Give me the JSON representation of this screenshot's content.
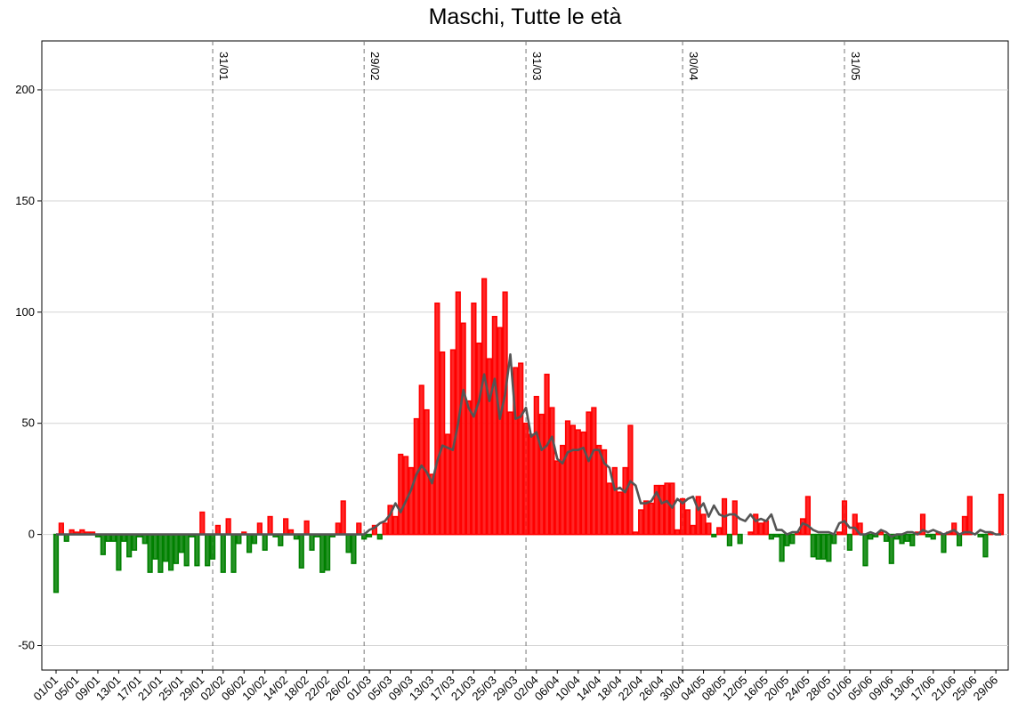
{
  "chart_data": {
    "type": "bar",
    "title": "Maschi, Tutte le età",
    "categories": [
      "01/01",
      null,
      null,
      null,
      "05/01",
      null,
      null,
      null,
      "09/01",
      null,
      null,
      null,
      "13/01",
      null,
      null,
      null,
      "17/01",
      null,
      null,
      null,
      "21/01",
      null,
      null,
      null,
      "25/01",
      null,
      null,
      null,
      "29/01",
      null,
      null,
      null,
      "02/02",
      null,
      null,
      null,
      "06/02",
      null,
      null,
      null,
      "10/02",
      null,
      null,
      null,
      "14/02",
      null,
      null,
      null,
      "18/02",
      null,
      null,
      null,
      "22/02",
      null,
      null,
      null,
      "26/02",
      null,
      null,
      null,
      "01/03",
      null,
      null,
      null,
      "05/03",
      null,
      null,
      null,
      "09/03",
      null,
      null,
      null,
      "13/03",
      null,
      null,
      null,
      "17/03",
      null,
      null,
      null,
      "21/03",
      null,
      null,
      null,
      "25/03",
      null,
      null,
      null,
      "29/03",
      null,
      null,
      null,
      "02/04",
      null,
      null,
      null,
      "06/04",
      null,
      null,
      null,
      "10/04",
      null,
      null,
      null,
      "14/04",
      null,
      null,
      null,
      "18/04",
      null,
      null,
      null,
      "22/04",
      null,
      null,
      null,
      "26/04",
      null,
      null,
      null,
      "30/04",
      null,
      null,
      null,
      "04/05",
      null,
      null,
      null,
      "08/05",
      null,
      null,
      null,
      "12/05",
      null,
      null,
      null,
      "16/05",
      null,
      null,
      null,
      "20/05",
      null,
      null,
      null,
      "24/05",
      null,
      null,
      null,
      "28/05",
      null,
      null,
      null,
      "01/06",
      null,
      null,
      null,
      "05/06",
      null,
      null,
      null,
      "09/06",
      null,
      null,
      null,
      "13/06",
      null,
      null,
      null,
      "17/06",
      null,
      null,
      null,
      "21/06",
      null,
      null,
      null,
      "25/06",
      null,
      null,
      null,
      "29/06",
      null
    ],
    "values": [
      -26,
      5,
      -3,
      2,
      1,
      2,
      1,
      1,
      -1,
      -9,
      -3,
      -3,
      -16,
      -3,
      -10,
      -7,
      -1,
      -4,
      -17,
      -11,
      -17,
      -12,
      -16,
      -13,
      -8,
      -14,
      -1,
      -14,
      10,
      -14,
      -11,
      4,
      -17,
      7,
      -17,
      -4,
      1,
      -8,
      -4,
      5,
      -7,
      8,
      -1,
      -5,
      7,
      2,
      -2,
      -15,
      6,
      -7,
      -1,
      -17,
      -16,
      -1,
      5,
      15,
      -8,
      -13,
      5,
      -2,
      -1,
      4,
      -2,
      5,
      13,
      8,
      36,
      35,
      30,
      52,
      67,
      56,
      27,
      104,
      82,
      45,
      83,
      109,
      95,
      60,
      104,
      86,
      115,
      79,
      98,
      93,
      109,
      55,
      75,
      77,
      50,
      45,
      62,
      54,
      72,
      57,
      33,
      40,
      51,
      49,
      47,
      46,
      55,
      57,
      40,
      38,
      23,
      30,
      19,
      30,
      49,
      1,
      11,
      15,
      14,
      22,
      22,
      23,
      23,
      2,
      16,
      11,
      4,
      17,
      9,
      5,
      -1,
      3,
      16,
      -5,
      15,
      -4,
      0,
      1,
      9,
      5,
      6,
      -2,
      -1,
      -12,
      -5,
      -4,
      1,
      7,
      17,
      -10,
      -11,
      -11,
      -12,
      -4,
      1,
      15,
      -7,
      9,
      5,
      -14,
      -2,
      -1,
      1,
      -3,
      -13,
      -2,
      -4,
      -3,
      -5,
      1,
      9,
      -1,
      -2,
      1,
      -8,
      1,
      5,
      -5,
      8,
      17,
      0,
      -1,
      -10,
      1,
      0,
      18
    ],
    "positive_color": "#ff0000",
    "negative_color": "#008000",
    "line": {
      "color": "#555555",
      "values": [
        0,
        0,
        0,
        0,
        0,
        0,
        0,
        0,
        0,
        0,
        0,
        0,
        0,
        0,
        0,
        0,
        0,
        0,
        0,
        0,
        0,
        0,
        0,
        0,
        0,
        0,
        0,
        0,
        0,
        0,
        0,
        0,
        0,
        0,
        0,
        0,
        0,
        0,
        0,
        0,
        0,
        0,
        0,
        0,
        0,
        0,
        0,
        0,
        0,
        0,
        0,
        0,
        0,
        0,
        0,
        0,
        0,
        0,
        0,
        0,
        2,
        3,
        5,
        6,
        9,
        14,
        10,
        15,
        20,
        27,
        31,
        28,
        23,
        33,
        40,
        39,
        38,
        50,
        65,
        57,
        53,
        60,
        72,
        60,
        70,
        52,
        63,
        81,
        52,
        53,
        57,
        44,
        46,
        38,
        40,
        44,
        34,
        32,
        37,
        38,
        38,
        39,
        33,
        38,
        38,
        32,
        30,
        20,
        21,
        19,
        24,
        22,
        14,
        14,
        15,
        19,
        14,
        15,
        12,
        16,
        14,
        16,
        17,
        11,
        14,
        8,
        13,
        9,
        8,
        9,
        9,
        7,
        6,
        9,
        6,
        7,
        6,
        9,
        2,
        2,
        0,
        1,
        1,
        5,
        4,
        2,
        1,
        1,
        1,
        0,
        5,
        6,
        3,
        3,
        0,
        0,
        1,
        0,
        2,
        1,
        -1,
        0,
        0,
        1,
        1,
        0,
        2,
        1,
        2,
        1,
        0,
        1,
        2,
        0,
        1,
        1,
        0,
        2,
        1,
        1,
        0,
        0
      ]
    },
    "vlines": [
      {
        "x": 30,
        "label": "31/01"
      },
      {
        "x": 59,
        "label": "29/02"
      },
      {
        "x": 90,
        "label": "31/03"
      },
      {
        "x": 120,
        "label": "30/04"
      },
      {
        "x": 151,
        "label": "31/05"
      }
    ],
    "ylim": [
      -61,
      222
    ],
    "yticks": [
      -50,
      0,
      50,
      100,
      150,
      200
    ],
    "grid": true
  }
}
